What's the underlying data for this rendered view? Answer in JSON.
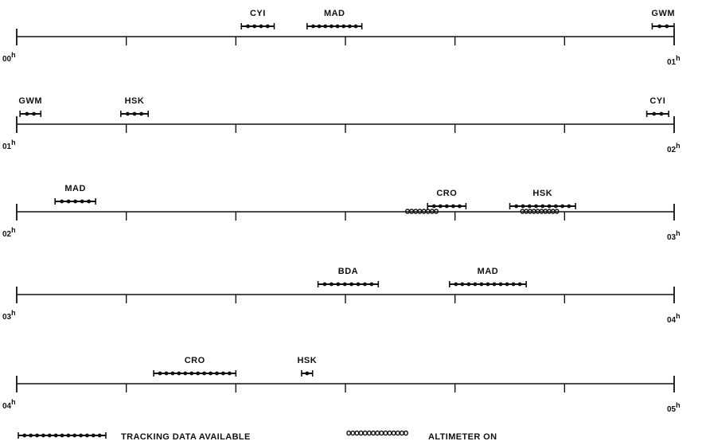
{
  "chart_data": {
    "type": "timeline",
    "x_unit": "minutes past the hour",
    "rows": [
      {
        "start_label": "00",
        "end_label": "01",
        "passes": [
          {
            "station": "CYI",
            "start": 20.5,
            "end": 23.5,
            "altimeter": false
          },
          {
            "station": "MAD",
            "start": 26.5,
            "end": 31.5,
            "altimeter": false
          },
          {
            "station": "GWM",
            "start": 58.0,
            "end": 60.0,
            "altimeter": false
          }
        ]
      },
      {
        "start_label": "01",
        "end_label": "02",
        "passes": [
          {
            "station": "GWM",
            "start": 0.3,
            "end": 2.2,
            "altimeter": false
          },
          {
            "station": "HSK",
            "start": 9.5,
            "end": 12.0,
            "altimeter": false
          },
          {
            "station": "CYI",
            "start": 57.5,
            "end": 59.5,
            "altimeter": false
          }
        ]
      },
      {
        "start_label": "02",
        "end_label": "03",
        "passes": [
          {
            "station": "MAD",
            "start": 3.5,
            "end": 7.2,
            "altimeter": false
          },
          {
            "station": "CRO",
            "start": 37.5,
            "end": 41.0,
            "altimeter": true,
            "altimeter_start": 35.5,
            "altimeter_end": 38.5
          },
          {
            "station": "HSK",
            "start": 45.0,
            "end": 51.0,
            "altimeter": true,
            "altimeter_start": 46.0,
            "altimeter_end": 49.5
          }
        ]
      },
      {
        "start_label": "03",
        "end_label": "04",
        "passes": [
          {
            "station": "BDA",
            "start": 27.5,
            "end": 33.0,
            "altimeter": false
          },
          {
            "station": "MAD",
            "start": 39.5,
            "end": 46.5,
            "altimeter": false
          }
        ]
      },
      {
        "start_label": "04",
        "end_label": "05",
        "passes": [
          {
            "station": "CRO",
            "start": 12.5,
            "end": 20.0,
            "altimeter": false
          },
          {
            "station": "HSK",
            "start": 26.0,
            "end": 27.0,
            "altimeter": false
          }
        ]
      }
    ]
  },
  "legend": {
    "tracking_label": "TRACKING DATA AVAILABLE",
    "altimeter_label": "ALTIMETER ON"
  }
}
